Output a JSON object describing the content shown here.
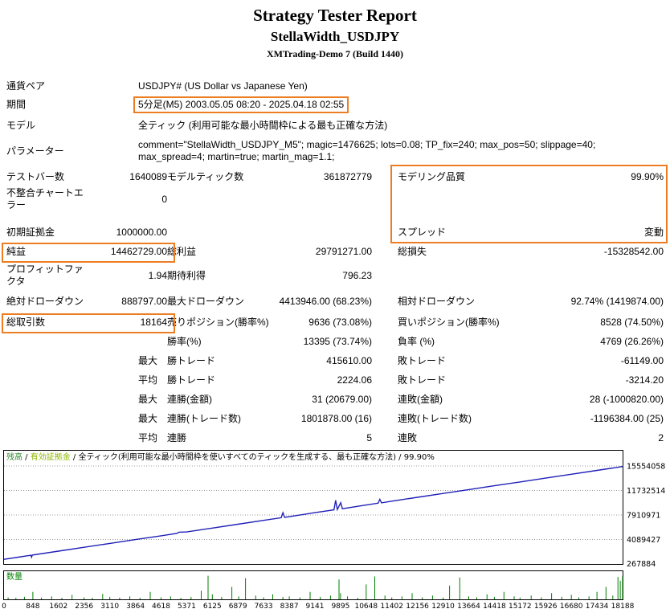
{
  "theme": {
    "highlight": "#ED7D22",
    "text": "#000000",
    "background": "#FFFFFF"
  },
  "header": {
    "title": "Strategy Tester Report",
    "expert_name": "StellaWidth_USDJPY",
    "server_build": "XMTrading-Demo 7 (Build 1440)"
  },
  "table": {
    "rows": [
      {
        "cells": [
          {
            "t": "通貨ペア"
          },
          {
            "t": "USDJPY# (US Dollar vs Japanese Yen)",
            "s": 5
          }
        ]
      },
      {
        "cells": [
          {
            "t": "期間"
          },
          {
            "t": "5分足(M5) 2003.05.05 08:20 - 2025.04.18 02:55",
            "s": 5,
            "hl": true
          }
        ]
      },
      {
        "cells": [
          {
            "t": "モデル"
          },
          {
            "t": "全ティック (利用可能な最小時間枠による最も正確な方法)",
            "s": 5
          }
        ]
      },
      {
        "cells": [
          {
            "t": "パラメーター"
          },
          {
            "t": "comment=\"StellaWidth_USDJPY_M5\"; magic=1476625; lots=0.08; TP_fix=240; max_pos=50; slippage=40; max_spread=4; martin=true; martin_mag=1.1;",
            "s": 5
          }
        ]
      },
      {
        "cells": [
          {
            "t": "テストバー数"
          },
          {
            "t": "1640089",
            "r": 1
          },
          {
            "t": "モデルティック数"
          },
          {
            "t": "361872779",
            "r": 1
          },
          {
            "t": "モデリング品質"
          },
          {
            "t": "99.90%",
            "r": 1
          }
        ]
      },
      {
        "cells": [
          {
            "t": "不整合チャートエラー"
          },
          {
            "t": "0",
            "r": 1
          },
          {
            "t": ""
          },
          {
            "t": ""
          },
          {
            "t": ""
          },
          {
            "t": ""
          }
        ]
      },
      {
        "cells": [
          {
            "t": "",
            "s": 6
          }
        ]
      },
      {
        "cells": [
          {
            "t": "初期証拠金"
          },
          {
            "t": "1000000.00",
            "r": 1
          },
          {
            "t": ""
          },
          {
            "t": ""
          },
          {
            "t": "スプレッド"
          },
          {
            "t": "変動",
            "r": 1
          }
        ]
      },
      {
        "cells": [
          {
            "t": "純益"
          },
          {
            "t": "14462729.00",
            "r": 1
          },
          {
            "t": "総利益"
          },
          {
            "t": "29791271.00",
            "r": 1
          },
          {
            "t": "総損失"
          },
          {
            "t": "-15328542.00",
            "r": 1
          }
        ]
      },
      {
        "cells": [
          {
            "t": "プロフィットファクタ"
          },
          {
            "t": "1.94",
            "r": 1
          },
          {
            "t": "期待利得"
          },
          {
            "t": "796.23",
            "r": 1
          },
          {
            "t": ""
          },
          {
            "t": ""
          }
        ]
      },
      {
        "cells": [
          {
            "t": "絶対ドローダウン"
          },
          {
            "t": "888797.00",
            "r": 1
          },
          {
            "t": "最大ドローダウン"
          },
          {
            "t": "4413946.00 (68.23%)",
            "r": 1
          },
          {
            "t": "相対ドローダウン"
          },
          {
            "t": "92.74% (1419874.00)",
            "r": 1
          }
        ]
      },
      {
        "cells": [
          {
            "t": "総取引数"
          },
          {
            "t": "18164",
            "r": 1
          },
          {
            "t": "売りポジション(勝率%)"
          },
          {
            "t": "9636 (73.08%)",
            "r": 1
          },
          {
            "t": "買いポジション(勝率%)"
          },
          {
            "t": "8528 (74.50%)",
            "r": 1
          }
        ]
      },
      {
        "cells": [
          {
            "t": ""
          },
          {
            "t": ""
          },
          {
            "t": "勝率(%)"
          },
          {
            "t": "13395 (73.74%)",
            "r": 1
          },
          {
            "t": "負率 (%)"
          },
          {
            "t": "4769 (26.26%)",
            "r": 1
          }
        ]
      },
      {
        "cells": [
          {
            "t": ""
          },
          {
            "t": "最大"
          },
          {
            "t": "勝トレード"
          },
          {
            "t": "415610.00",
            "r": 1
          },
          {
            "t": "敗トレード"
          },
          {
            "t": "-61149.00",
            "r": 1
          }
        ]
      },
      {
        "cells": [
          {
            "t": ""
          },
          {
            "t": "平均"
          },
          {
            "t": "勝トレード"
          },
          {
            "t": "2224.06",
            "r": 1
          },
          {
            "t": "敗トレード"
          },
          {
            "t": "-3214.20",
            "r": 1
          }
        ]
      },
      {
        "cells": [
          {
            "t": ""
          },
          {
            "t": "最大"
          },
          {
            "t": "連勝(金額)"
          },
          {
            "t": "31 (20679.00)",
            "r": 1
          },
          {
            "t": "連敗(金額)"
          },
          {
            "t": "28 (-1000820.00)",
            "r": 1
          }
        ]
      },
      {
        "cells": [
          {
            "t": ""
          },
          {
            "t": "最大"
          },
          {
            "t": "連勝(トレード数)"
          },
          {
            "t": "1801878.00 (16)",
            "r": 1
          },
          {
            "t": "連敗(トレード数)"
          },
          {
            "t": "-1196384.00 (25)",
            "r": 1
          }
        ]
      },
      {
        "cells": [
          {
            "t": ""
          },
          {
            "t": "平均"
          },
          {
            "t": "連勝"
          },
          {
            "t": "5",
            "r": 1
          },
          {
            "t": "連敗"
          },
          {
            "t": "2",
            "r": 1
          }
        ]
      }
    ]
  },
  "chart_data": {
    "type": "line",
    "legend": [
      {
        "text": "残高",
        "color": "#2E8B2E"
      },
      {
        "text": " / ",
        "color": "#000000"
      },
      {
        "text": "有効証拠金",
        "color": "#8DB600"
      },
      {
        "text": " / ",
        "color": "#000000"
      },
      {
        "text": "全ティック(利用可能な最小時間枠を使いすべてのティックを生成する、最も正確な方法)",
        "color": "#000000"
      },
      {
        "text": " / 99.90%",
        "color": "#000000"
      }
    ],
    "line_color": "#2020B8",
    "grid_color": "#9A9A9A",
    "x_range": [
      0,
      18188
    ],
    "y_ticks": [
      15554058,
      11732514,
      7910971,
      4089427,
      267884
    ],
    "x_ticks": [
      0,
      848,
      1602,
      2356,
      3110,
      3864,
      4618,
      5371,
      6125,
      6879,
      7633,
      8387,
      9141,
      9895,
      10648,
      11402,
      12156,
      12910,
      13664,
      14418,
      15172,
      15926,
      16680,
      17434,
      18188
    ],
    "series": [
      {
        "name": "残高",
        "points": [
          [
            0,
            1000000
          ],
          [
            500,
            1400000
          ],
          [
            790,
            1628000
          ],
          [
            810,
            1330000
          ],
          [
            830,
            1660000
          ],
          [
            1602,
            2274000
          ],
          [
            2356,
            2874000
          ],
          [
            3110,
            3473000
          ],
          [
            3864,
            4073000
          ],
          [
            4618,
            4672000
          ],
          [
            5090,
            5048000
          ],
          [
            5140,
            5230000
          ],
          [
            5371,
            5271000
          ],
          [
            6125,
            5871000
          ],
          [
            6879,
            6470000
          ],
          [
            7633,
            7070000
          ],
          [
            8150,
            7481000
          ],
          [
            8200,
            8260000
          ],
          [
            8250,
            7530000
          ],
          [
            9141,
            8269000
          ],
          [
            9700,
            8714000
          ],
          [
            9750,
            10210000
          ],
          [
            9800,
            8760000
          ],
          [
            9900,
            9830000
          ],
          [
            9950,
            8890000
          ],
          [
            10648,
            9468000
          ],
          [
            11000,
            9748000
          ],
          [
            11050,
            10360000
          ],
          [
            11100,
            9800000
          ],
          [
            11402,
            10068000
          ],
          [
            12156,
            10668000
          ],
          [
            12910,
            11267000
          ],
          [
            13664,
            11867000
          ],
          [
            14418,
            12466000
          ],
          [
            15172,
            13066000
          ],
          [
            15926,
            13666000
          ],
          [
            16680,
            14265000
          ],
          [
            17434,
            14865000
          ],
          [
            18188,
            15462729
          ]
        ]
      }
    ],
    "volume": {
      "name": "数量",
      "color": "#008000",
      "bars": [
        [
          120,
          0.08
        ],
        [
          350,
          0.06
        ],
        [
          600,
          0.1
        ],
        [
          848,
          0.3
        ],
        [
          1100,
          0.07
        ],
        [
          1400,
          0.12
        ],
        [
          1700,
          0.06
        ],
        [
          2000,
          0.18
        ],
        [
          2356,
          0.08
        ],
        [
          2600,
          0.06
        ],
        [
          2900,
          0.22
        ],
        [
          3110,
          0.1
        ],
        [
          3400,
          0.07
        ],
        [
          3700,
          0.12
        ],
        [
          4000,
          0.06
        ],
        [
          4300,
          0.3
        ],
        [
          4618,
          0.08
        ],
        [
          4900,
          0.12
        ],
        [
          5200,
          0.06
        ],
        [
          5500,
          0.1
        ],
        [
          5800,
          0.35
        ],
        [
          6000,
          0.95
        ],
        [
          6125,
          0.2
        ],
        [
          6400,
          0.1
        ],
        [
          6700,
          0.5
        ],
        [
          6900,
          0.12
        ],
        [
          7100,
          0.85
        ],
        [
          7400,
          0.15
        ],
        [
          7633,
          0.08
        ],
        [
          7900,
          0.2
        ],
        [
          8200,
          0.1
        ],
        [
          8387,
          0.12
        ],
        [
          8700,
          0.08
        ],
        [
          9000,
          0.3
        ],
        [
          9300,
          0.1
        ],
        [
          9600,
          0.15
        ],
        [
          9850,
          0.8
        ],
        [
          9895,
          0.25
        ],
        [
          10100,
          0.12
        ],
        [
          10400,
          0.06
        ],
        [
          10648,
          0.6
        ],
        [
          10900,
          0.92
        ],
        [
          11200,
          0.15
        ],
        [
          11402,
          0.08
        ],
        [
          11700,
          0.12
        ],
        [
          12000,
          0.25
        ],
        [
          12300,
          0.08
        ],
        [
          12600,
          0.15
        ],
        [
          12910,
          0.07
        ],
        [
          13100,
          0.55
        ],
        [
          13400,
          0.88
        ],
        [
          13664,
          0.12
        ],
        [
          13900,
          0.08
        ],
        [
          14200,
          0.2
        ],
        [
          14418,
          0.1
        ],
        [
          14700,
          0.3
        ],
        [
          15000,
          0.12
        ],
        [
          15172,
          0.07
        ],
        [
          15500,
          0.15
        ],
        [
          15800,
          0.08
        ],
        [
          16100,
          0.25
        ],
        [
          16400,
          0.1
        ],
        [
          16680,
          0.18
        ],
        [
          16900,
          0.08
        ],
        [
          17200,
          0.12
        ],
        [
          17434,
          0.3
        ],
        [
          17700,
          0.5
        ],
        [
          17900,
          0.15
        ],
        [
          18050,
          0.9
        ],
        [
          18120,
          0.75
        ],
        [
          18188,
          0.95
        ]
      ]
    }
  }
}
